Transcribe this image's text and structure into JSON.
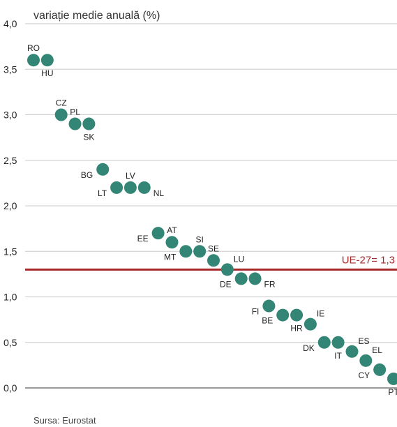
{
  "chart_data": {
    "type": "scatter",
    "title": "variație medie anuală (%)",
    "source": "Sursa: Eurostat",
    "ylim": [
      0,
      4
    ],
    "y_ticks": [
      "0,0",
      "0,5",
      "1,0",
      "1,5",
      "2,0",
      "2,5",
      "3,0",
      "3,5",
      "4,0"
    ],
    "grid": true,
    "reference_line": {
      "value": 1.3,
      "label": "UE-27= 1,3"
    },
    "points": [
      {
        "label": "RO",
        "value": 3.6,
        "label_pos": "above"
      },
      {
        "label": "HU",
        "value": 3.6,
        "label_pos": "below"
      },
      {
        "label": "CZ",
        "value": 3.0,
        "label_pos": "above"
      },
      {
        "label": "PL",
        "value": 2.9,
        "label_pos": "above"
      },
      {
        "label": "SK",
        "value": 2.9,
        "label_pos": "below"
      },
      {
        "label": "BG",
        "value": 2.4,
        "label_pos": "below-left"
      },
      {
        "label": "LT",
        "value": 2.2,
        "label_pos": "below-left"
      },
      {
        "label": "LV",
        "value": 2.2,
        "label_pos": "above"
      },
      {
        "label": "NL",
        "value": 2.2,
        "label_pos": "below-right"
      },
      {
        "label": "EE",
        "value": 1.7,
        "label_pos": "below-left"
      },
      {
        "label": "AT",
        "value": 1.6,
        "label_pos": "above"
      },
      {
        "label": "MT",
        "value": 1.5,
        "label_pos": "below-left"
      },
      {
        "label": "SI",
        "value": 1.5,
        "label_pos": "above"
      },
      {
        "label": "SE",
        "value": 1.4,
        "label_pos": "above"
      },
      {
        "label": "LU",
        "value": 1.3,
        "label_pos": "above-right"
      },
      {
        "label": "DE",
        "value": 1.2,
        "label_pos": "below-left"
      },
      {
        "label": "FR",
        "value": 1.2,
        "label_pos": "below-right"
      },
      {
        "label": "FI",
        "value": 0.9,
        "label_pos": "below-left"
      },
      {
        "label": "BE",
        "value": 0.8,
        "label_pos": "below-left"
      },
      {
        "label": "HR",
        "value": 0.8,
        "label_pos": "below"
      },
      {
        "label": "IE",
        "value": 0.7,
        "label_pos": "above-right"
      },
      {
        "label": "DK",
        "value": 0.5,
        "label_pos": "below-left"
      },
      {
        "label": "IT",
        "value": 0.5,
        "label_pos": "below"
      },
      {
        "label": "ES",
        "value": 0.4,
        "label_pos": "above-right"
      },
      {
        "label": "EL",
        "value": 0.3,
        "label_pos": "above-right"
      },
      {
        "label": "CY",
        "value": 0.2,
        "label_pos": "below-left"
      },
      {
        "label": "PT",
        "value": 0.1,
        "label_pos": "below"
      }
    ],
    "colors": {
      "point": "#338575",
      "reference": "#a7282b",
      "grid": "#c8c8c8",
      "axis": "#333333"
    }
  }
}
